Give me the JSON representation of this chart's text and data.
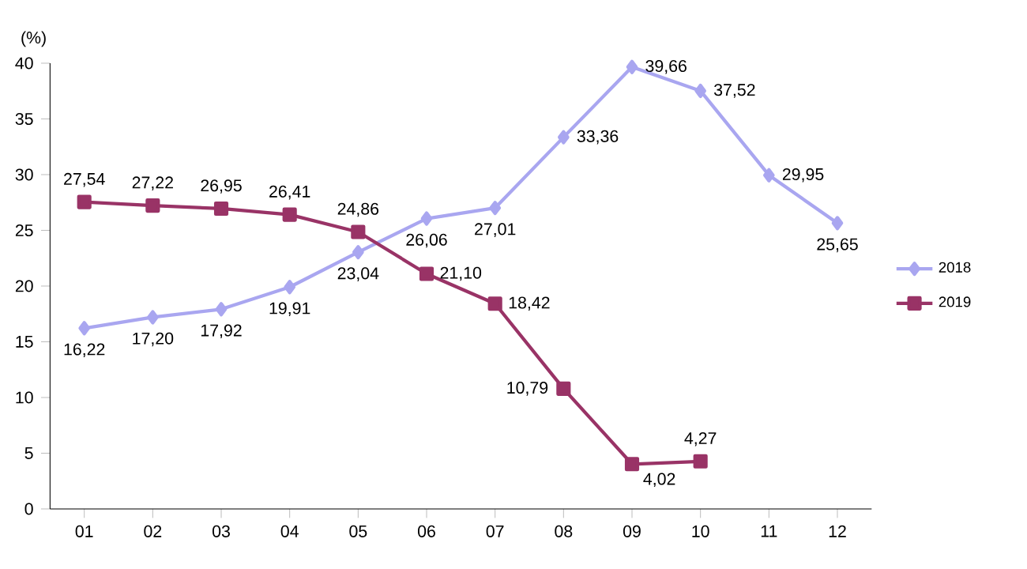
{
  "chart_data": {
    "type": "line",
    "ylabel": "(%)",
    "categories": [
      "01",
      "02",
      "03",
      "04",
      "05",
      "06",
      "07",
      "08",
      "09",
      "10",
      "11",
      "12"
    ],
    "ylim": [
      0,
      40
    ],
    "yticks": [
      0,
      5,
      10,
      15,
      20,
      25,
      30,
      35,
      40
    ],
    "grid": false,
    "legend": "right",
    "series": [
      {
        "name": "2018",
        "color": "#a9a6f0",
        "marker": "diamond",
        "values": [
          16.22,
          17.2,
          17.92,
          19.91,
          23.04,
          26.06,
          27.01,
          33.36,
          39.66,
          37.52,
          29.95,
          25.65
        ],
        "value_labels": [
          "16,22",
          "17,20",
          "17,92",
          "19,91",
          "23,04",
          "26,06",
          "27,01",
          "33,36",
          "39,66",
          "37,52",
          "29,95",
          "25,65"
        ]
      },
      {
        "name": "2019",
        "color": "#993366",
        "marker": "square",
        "values": [
          27.54,
          27.22,
          26.95,
          26.41,
          24.86,
          21.1,
          18.42,
          10.79,
          4.02,
          4.27,
          null,
          null
        ],
        "value_labels": [
          "27,54",
          "27,22",
          "26,95",
          "26,41",
          "24,86",
          "21,10",
          "18,42",
          "10,79",
          "4,02",
          "4,27",
          null,
          null
        ]
      }
    ]
  }
}
